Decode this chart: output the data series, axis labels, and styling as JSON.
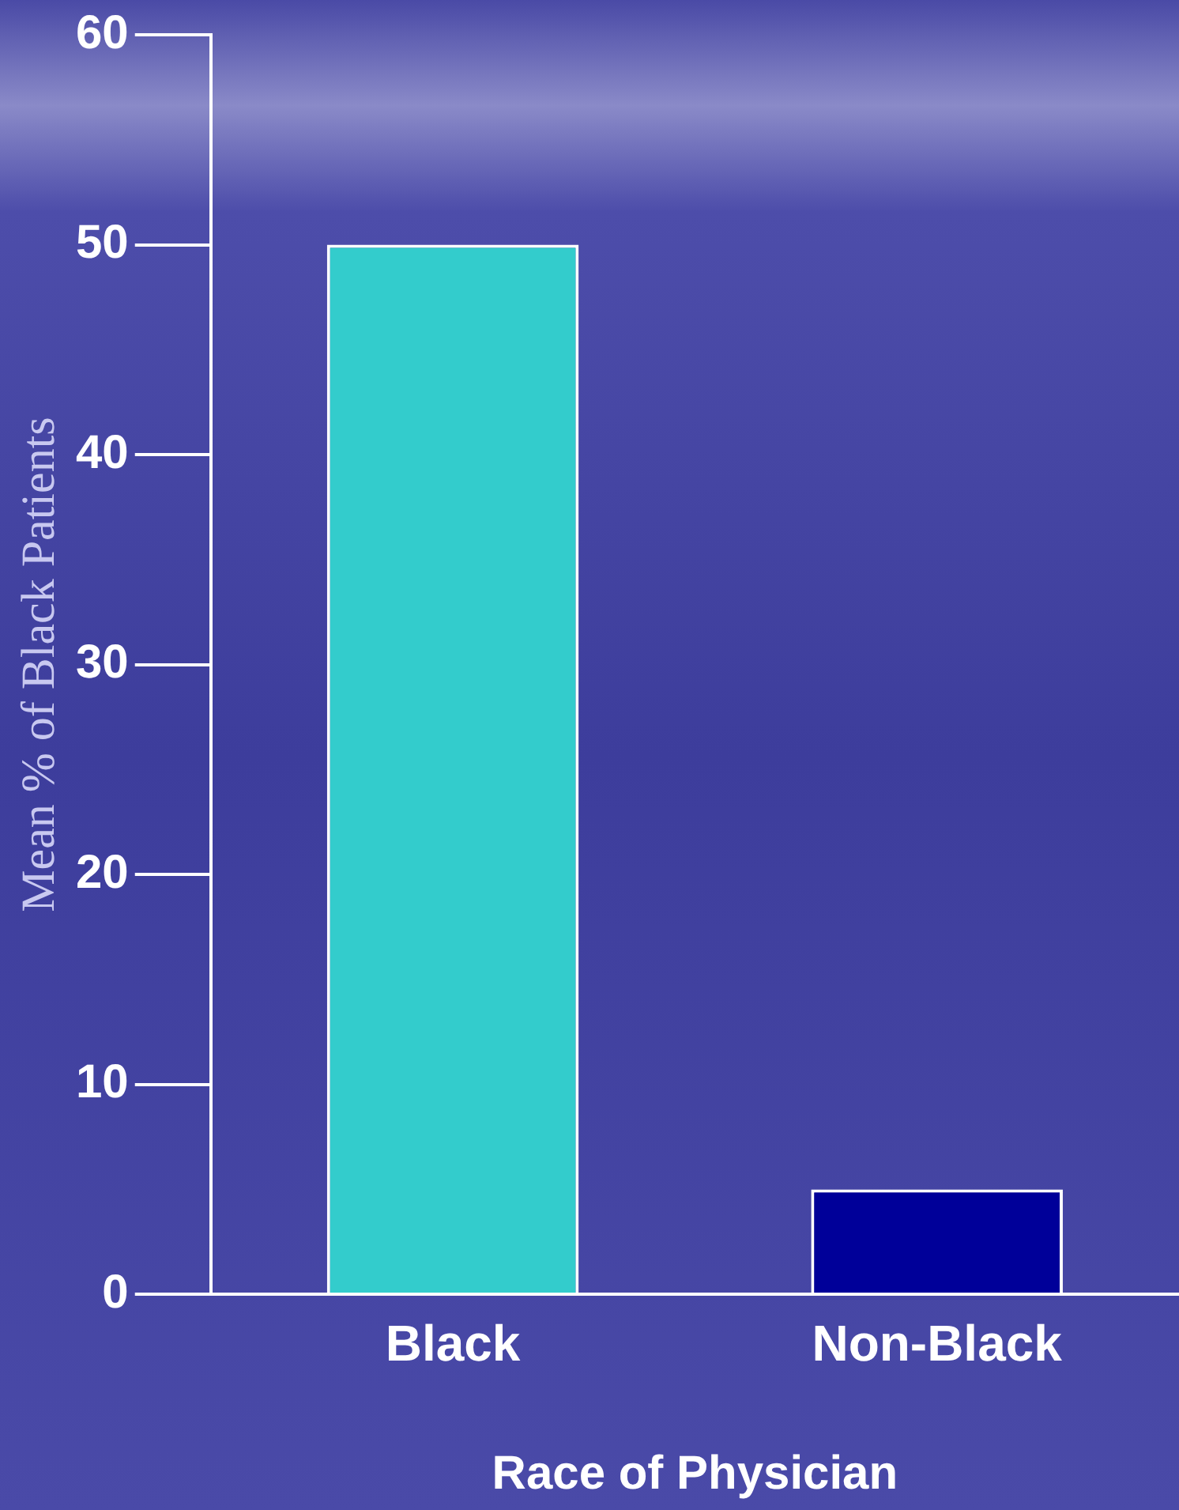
{
  "chart_data": {
    "type": "bar",
    "xlabel": "Race of Physician",
    "ylabel": "Mean % of Black Patients",
    "categories": [
      "Black",
      "Non-Black"
    ],
    "values": [
      50,
      5
    ],
    "colors": [
      "#33cccc",
      "#000099"
    ],
    "ylim": [
      0,
      60
    ],
    "yticks": [
      0,
      10,
      20,
      30,
      40,
      50,
      60
    ],
    "grid": false
  }
}
